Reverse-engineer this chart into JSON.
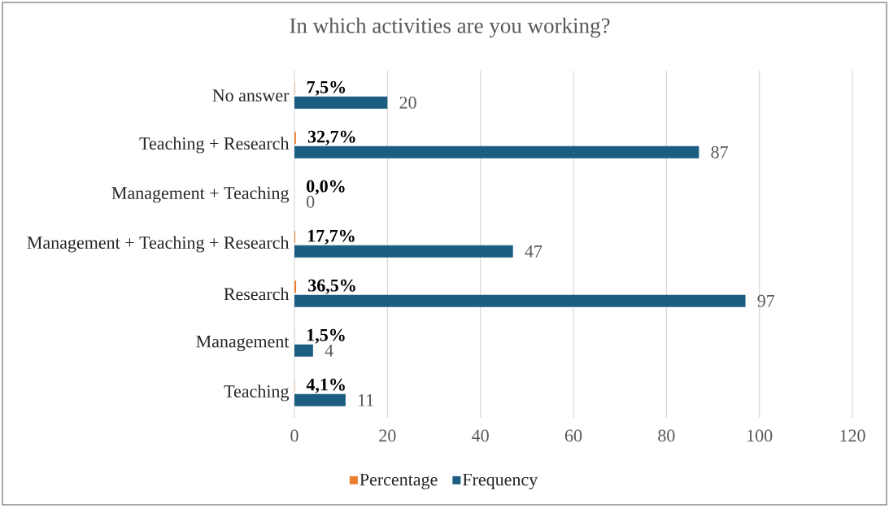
{
  "chart_data": {
    "type": "bar",
    "orientation": "horizontal",
    "title": "In which activities are you working?",
    "categories": [
      "No answer",
      "Teaching + Research",
      "Management + Teaching",
      "Management + Teaching + Research",
      "Research",
      "Management",
      "Teaching"
    ],
    "series": [
      {
        "name": "Percentage",
        "color": "#ed7d31",
        "values": [
          0.075,
          0.327,
          0.0,
          0.177,
          0.365,
          0.015,
          0.041
        ],
        "value_labels": [
          "7,5%",
          "32,7%",
          "0,0%",
          "17,7%",
          "36,5%",
          "1,5%",
          "4,1%"
        ]
      },
      {
        "name": "Frequency",
        "color": "#1b5e82",
        "values": [
          20,
          87,
          0,
          47,
          97,
          4,
          11
        ],
        "value_labels": [
          "20",
          "87",
          "0",
          "47",
          "97",
          "4",
          "11"
        ]
      }
    ],
    "xlim": [
      0,
      120
    ],
    "xticks": [
      0,
      20,
      40,
      60,
      80,
      100,
      120
    ],
    "grid": "x",
    "legend": "bottom"
  }
}
